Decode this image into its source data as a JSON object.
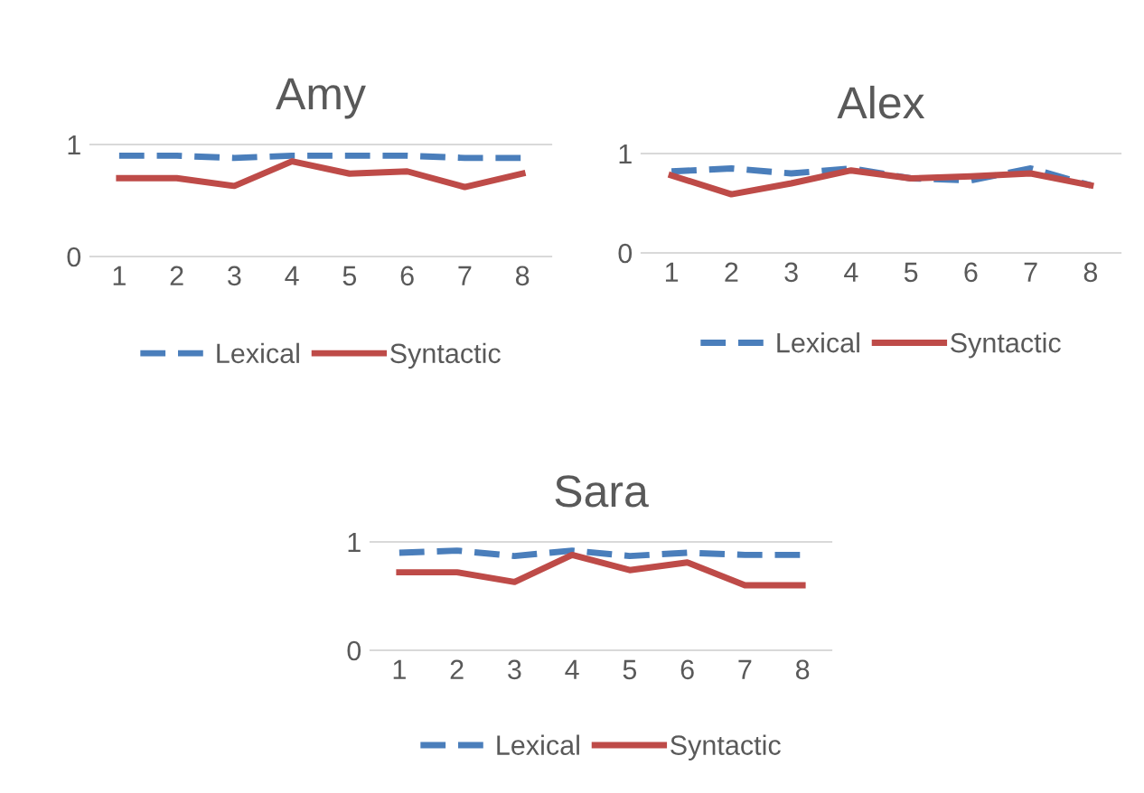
{
  "chart_data": [
    {
      "type": "line",
      "title": "Amy",
      "categories": [
        "1",
        "2",
        "3",
        "4",
        "5",
        "6",
        "7",
        "8"
      ],
      "ylim": [
        0,
        1
      ],
      "yticks": [
        0,
        1
      ],
      "legend": "bottom",
      "series": [
        {
          "name": "Lexical",
          "color": "#4a7ebb",
          "line_style": "dashed",
          "values": [
            0.9,
            0.9,
            0.88,
            0.9,
            0.9,
            0.9,
            0.88,
            0.88
          ]
        },
        {
          "name": "Syntactic",
          "color": "#be4b48",
          "line_style": "solid",
          "values": [
            0.7,
            0.7,
            0.63,
            0.85,
            0.74,
            0.76,
            0.62,
            0.74
          ]
        }
      ]
    },
    {
      "type": "line",
      "title": "Alex",
      "categories": [
        "1",
        "2",
        "3",
        "4",
        "5",
        "6",
        "7",
        "8"
      ],
      "ylim": [
        0,
        1
      ],
      "yticks": [
        0,
        1
      ],
      "legend": "bottom",
      "series": [
        {
          "name": "Lexical",
          "color": "#4a7ebb",
          "line_style": "dashed",
          "values": [
            0.82,
            0.85,
            0.8,
            0.85,
            0.75,
            0.73,
            0.85,
            0.68
          ]
        },
        {
          "name": "Syntactic",
          "color": "#be4b48",
          "line_style": "solid",
          "values": [
            0.78,
            0.59,
            0.7,
            0.83,
            0.75,
            0.77,
            0.8,
            0.68
          ]
        }
      ]
    },
    {
      "type": "line",
      "title": "Sara",
      "categories": [
        "1",
        "2",
        "3",
        "4",
        "5",
        "6",
        "7",
        "8"
      ],
      "ylim": [
        0,
        1
      ],
      "yticks": [
        0,
        1
      ],
      "legend": "bottom",
      "series": [
        {
          "name": "Lexical",
          "color": "#4a7ebb",
          "line_style": "dashed",
          "values": [
            0.9,
            0.92,
            0.87,
            0.92,
            0.87,
            0.9,
            0.88,
            0.88
          ]
        },
        {
          "name": "Syntactic",
          "color": "#be4b48",
          "line_style": "solid",
          "values": [
            0.72,
            0.72,
            0.63,
            0.88,
            0.74,
            0.81,
            0.6,
            0.6
          ]
        }
      ]
    }
  ]
}
